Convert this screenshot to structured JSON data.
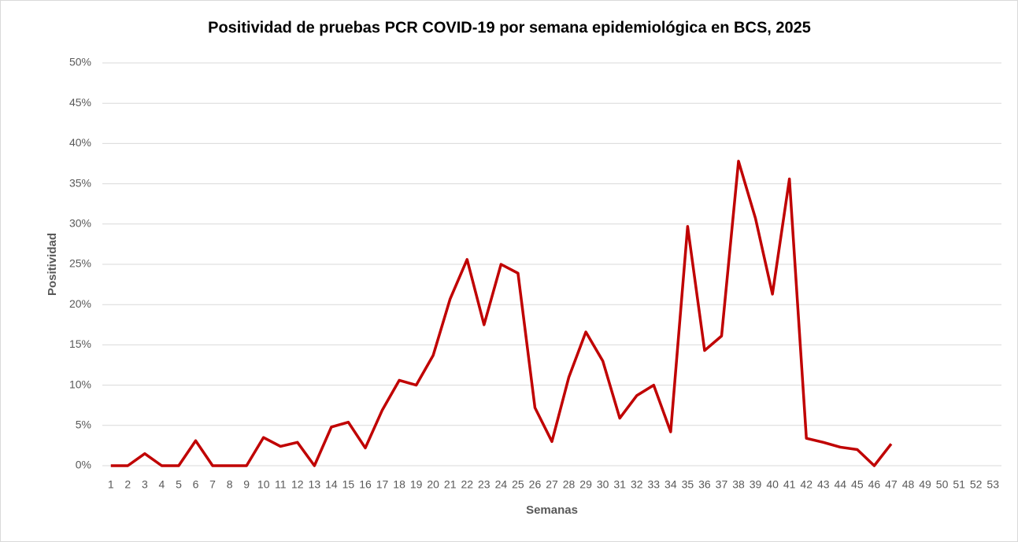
{
  "chart_data": {
    "type": "line",
    "title": "Positividad de pruebas PCR COVID-19 por semana epidemiológica en BCS, 2025",
    "xlabel": "Semanas",
    "ylabel": "Positividad",
    "categories": [
      1,
      2,
      3,
      4,
      5,
      6,
      7,
      8,
      9,
      10,
      11,
      12,
      13,
      14,
      15,
      16,
      17,
      18,
      19,
      20,
      21,
      22,
      23,
      24,
      25,
      26,
      27,
      28,
      29,
      30,
      31,
      32,
      33,
      34,
      35,
      36,
      37,
      38,
      39,
      40,
      41,
      42,
      43,
      44,
      45,
      46,
      47,
      48,
      49,
      50,
      51,
      52,
      53
    ],
    "series": [
      {
        "name": "Positividad",
        "color": "#c00000",
        "values": [
          0,
          0,
          1.5,
          0,
          0,
          3.1,
          0,
          0,
          0,
          3.5,
          2.4,
          2.9,
          0,
          4.8,
          5.4,
          2.2,
          6.9,
          10.6,
          10.0,
          13.7,
          20.7,
          25.6,
          17.5,
          25.0,
          23.9,
          7.2,
          3.0,
          11.0,
          16.6,
          13.0,
          5.9,
          8.7,
          10.0,
          4.2,
          29.7,
          14.3,
          16.1,
          37.8,
          30.7,
          21.3,
          35.6,
          3.4,
          2.9,
          2.3,
          2.0,
          0,
          2.7,
          null,
          null,
          null,
          null,
          null,
          null
        ]
      }
    ],
    "ylim": [
      0,
      50
    ],
    "yticks": [
      {
        "value": 0,
        "label": "0%"
      },
      {
        "value": 5,
        "label": "5%"
      },
      {
        "value": 10,
        "label": "10%"
      },
      {
        "value": 15,
        "label": "15%"
      },
      {
        "value": 20,
        "label": "20%"
      },
      {
        "value": 25,
        "label": "25%"
      },
      {
        "value": 30,
        "label": "30%"
      },
      {
        "value": 35,
        "label": "35%"
      },
      {
        "value": 40,
        "label": "40%"
      },
      {
        "value": 45,
        "label": "45%"
      },
      {
        "value": 50,
        "label": "50%"
      }
    ],
    "grid": true
  }
}
